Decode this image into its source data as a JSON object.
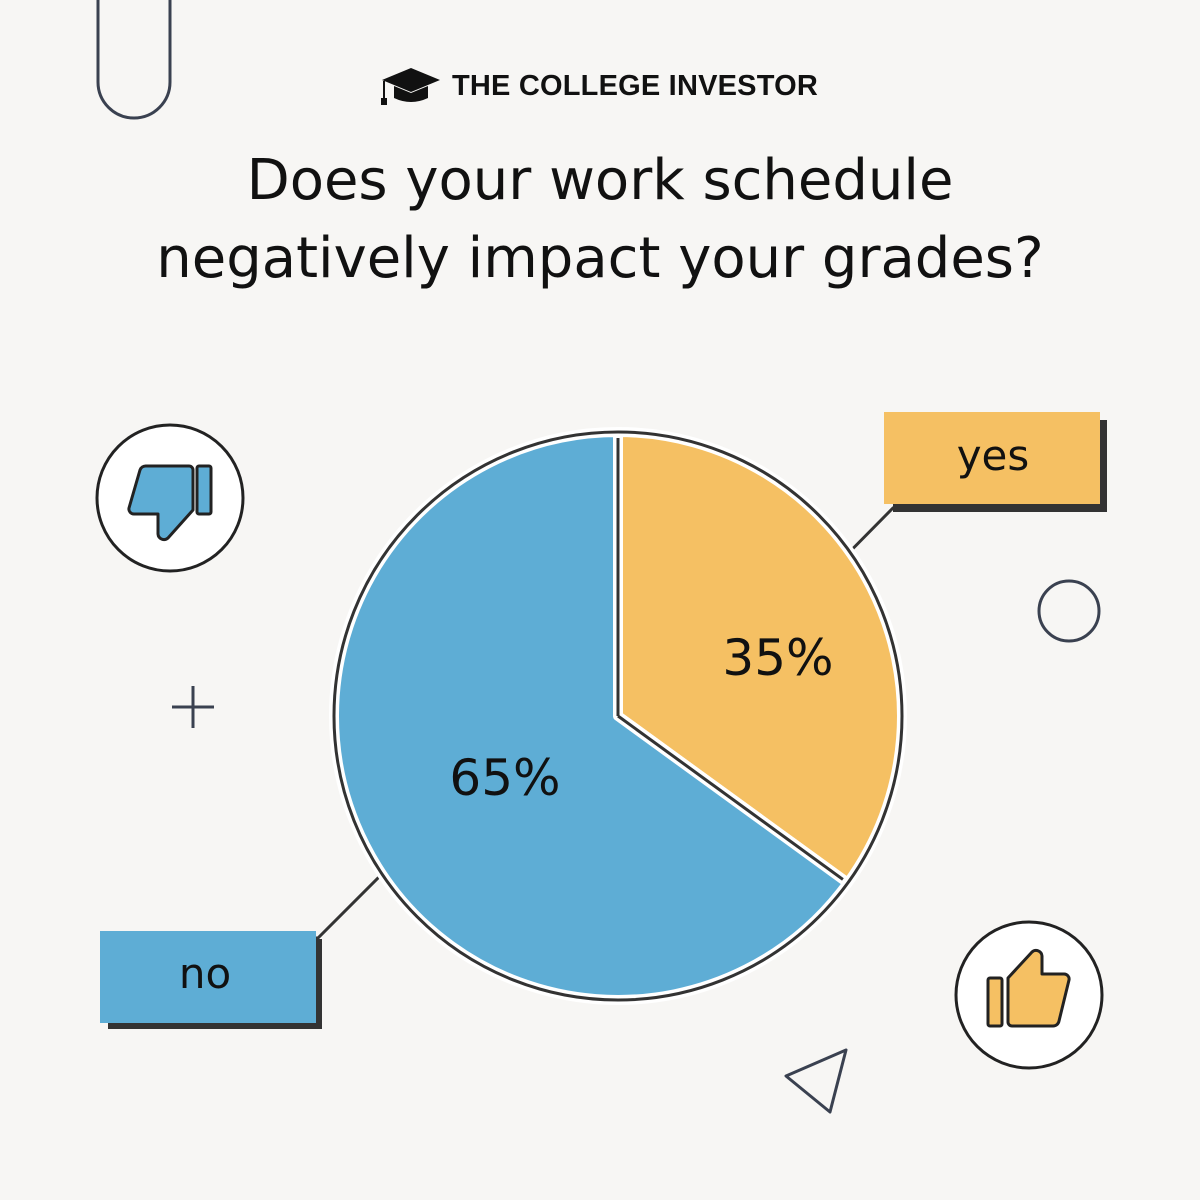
{
  "brand": {
    "name": "THE COLLEGE INVESTOR",
    "icon": "graduation-cap-icon"
  },
  "title_lines": [
    "Does your work schedule",
    "negatively impact your grades?"
  ],
  "colors": {
    "background": "#f7f6f4",
    "yes": "#f5c063",
    "no": "#5eadd5",
    "outline": "#333333"
  },
  "chart_data": {
    "type": "pie",
    "title": "Does your work schedule negatively impact your grades?",
    "categories": [
      "yes",
      "no"
    ],
    "values": [
      35,
      65
    ],
    "data_labels": [
      "35%",
      "65%"
    ],
    "colors": [
      "#f5c063",
      "#5eadd5"
    ],
    "start_angle": "top, clockwise"
  },
  "decorations": {
    "no_icon": "thumbs-down-icon",
    "yes_icon": "thumbs-up-icon"
  }
}
